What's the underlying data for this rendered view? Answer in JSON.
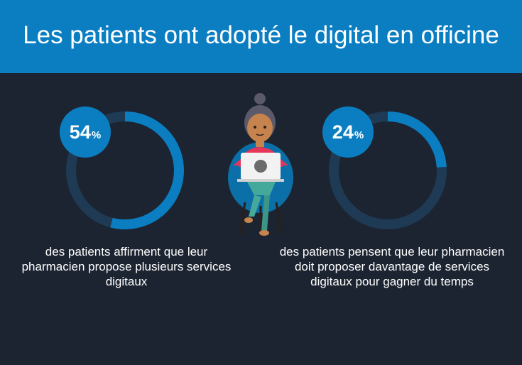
{
  "header": {
    "title": "Les patients ont adopté le digital en officine",
    "background": "#0b7ec2"
  },
  "stats": [
    {
      "value": "54",
      "unit": "%",
      "percent": 54,
      "description": "des patients affirment que leur pharmacien propose plusieurs services digitaux"
    },
    {
      "value": "24",
      "unit": "%",
      "percent": 24,
      "description": "des patients pensent que leur pharmacien doit proposer davantage de services digitaux pour gagner du temps"
    }
  ],
  "colors": {
    "background": "#1c2431",
    "ring_fill": "#0b7ec2",
    "ring_track": "#1f3a55"
  },
  "illustration": "woman-with-laptop-illustration"
}
